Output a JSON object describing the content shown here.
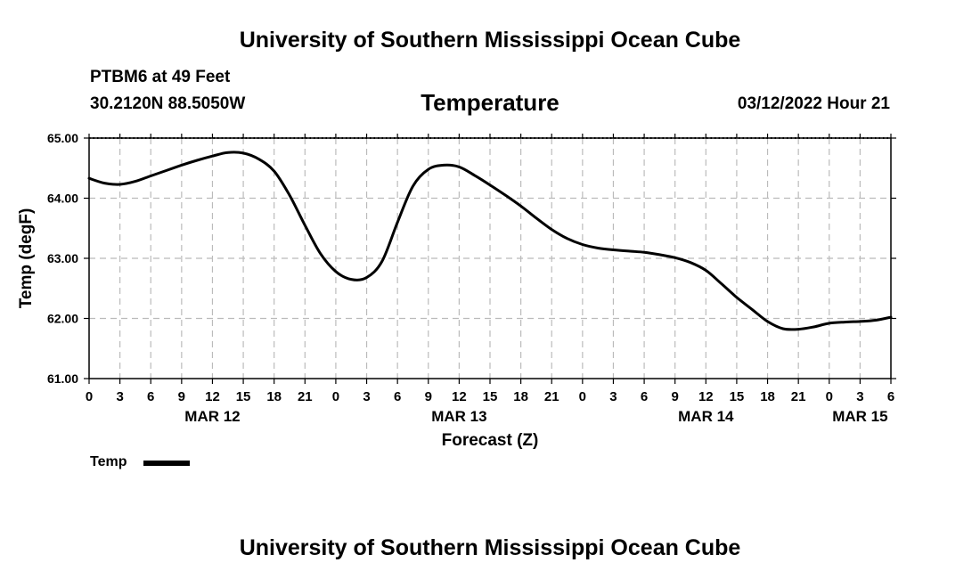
{
  "header": {
    "top_title": "University of Southern Mississippi Ocean Cube",
    "bottom_title": "University of Southern Mississippi Ocean Cube",
    "station": "PTBM6 at 49 Feet",
    "coords": "30.2120N  88.5050W",
    "datetime": "03/12/2022 Hour 21"
  },
  "legend": {
    "label": "Temp"
  },
  "chart_data": {
    "type": "line",
    "title": "Temperature",
    "xlabel": "Forecast (Z)",
    "ylabel": "Temp (degF)",
    "xlim": [
      0,
      78
    ],
    "ylim": [
      61,
      65
    ],
    "yticks": [
      61,
      62,
      63,
      64,
      65
    ],
    "ytick_labels": [
      "61.00",
      "62.00",
      "63.00",
      "64.00",
      "65.00"
    ],
    "xticks": [
      0,
      3,
      6,
      9,
      12,
      15,
      18,
      21,
      24,
      27,
      30,
      33,
      36,
      39,
      42,
      45,
      48,
      51,
      54,
      57,
      60,
      63,
      66,
      69,
      72,
      75,
      78
    ],
    "xtick_labels": [
      "0",
      "3",
      "6",
      "9",
      "12",
      "15",
      "18",
      "21",
      "0",
      "3",
      "6",
      "9",
      "12",
      "15",
      "18",
      "21",
      "0",
      "3",
      "6",
      "9",
      "12",
      "15",
      "18",
      "21",
      "0",
      "3",
      "6"
    ],
    "date_labels": [
      {
        "x": 12,
        "label": "MAR 12"
      },
      {
        "x": 36,
        "label": "MAR 13"
      },
      {
        "x": 60,
        "label": "MAR 14"
      },
      {
        "x": 75,
        "label": "MAR 15"
      }
    ],
    "grid": true,
    "series": [
      {
        "name": "Temp",
        "color": "#000000",
        "x": [
          0,
          1.5,
          3,
          4.5,
          6,
          7.5,
          9,
          10.5,
          12,
          13.5,
          15,
          16.5,
          18,
          19.5,
          21,
          22.5,
          24,
          25.5,
          27,
          28.5,
          30,
          31.5,
          33,
          34.5,
          36,
          37.5,
          39,
          40.5,
          42,
          43.5,
          45,
          46.5,
          48,
          49.5,
          51,
          52.5,
          54,
          55.5,
          57,
          58.5,
          60,
          61.5,
          63,
          64.5,
          66,
          67.5,
          69,
          70.5,
          72,
          73.5,
          75,
          76.5,
          78
        ],
        "values": [
          64.33,
          64.25,
          64.23,
          64.28,
          64.37,
          64.46,
          64.55,
          64.63,
          64.7,
          64.76,
          64.75,
          64.65,
          64.45,
          64.05,
          63.55,
          63.08,
          62.78,
          62.65,
          62.68,
          62.95,
          63.6,
          64.2,
          64.48,
          64.55,
          64.52,
          64.38,
          64.22,
          64.05,
          63.87,
          63.67,
          63.48,
          63.33,
          63.23,
          63.17,
          63.14,
          63.12,
          63.1,
          63.06,
          63.01,
          62.93,
          62.8,
          62.58,
          62.35,
          62.15,
          61.95,
          61.83,
          61.82,
          61.86,
          61.92,
          61.94,
          61.95,
          61.97,
          62.02
        ]
      }
    ]
  }
}
